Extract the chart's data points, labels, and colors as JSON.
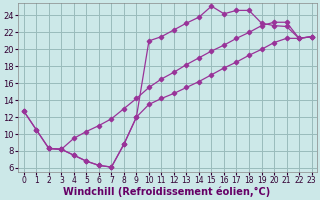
{
  "xlabel": "Windchill (Refroidissement éolien,°C)",
  "bg_color": "#cce8e8",
  "grid_color": "#99bbbb",
  "line_color": "#993399",
  "xlim_min": -0.5,
  "xlim_max": 23.4,
  "ylim_min": 5.5,
  "ylim_max": 25.5,
  "xticks": [
    0,
    1,
    2,
    3,
    4,
    5,
    6,
    7,
    8,
    9,
    10,
    11,
    12,
    13,
    14,
    15,
    16,
    17,
    18,
    19,
    20,
    21,
    22,
    23
  ],
  "yticks": [
    6,
    8,
    10,
    12,
    14,
    16,
    18,
    20,
    22,
    24
  ],
  "line1_x": [
    0,
    1,
    2,
    3,
    4,
    5,
    6,
    7,
    8,
    9,
    10,
    11,
    12,
    13,
    14,
    15,
    16,
    17,
    18,
    19,
    20,
    21,
    22,
    23
  ],
  "line1_y": [
    12.7,
    10.5,
    8.3,
    8.2,
    7.5,
    6.8,
    6.3,
    6.1,
    8.8,
    12.0,
    21.0,
    21.5,
    22.3,
    23.1,
    23.8,
    25.1,
    24.2,
    24.6,
    24.6,
    23.1,
    22.8,
    22.7,
    21.3,
    21.5
  ],
  "line2_x": [
    2,
    3,
    4,
    5,
    6,
    7,
    8,
    9,
    10,
    11,
    12,
    13,
    14,
    15,
    16,
    17,
    18,
    19,
    20,
    21,
    22,
    23
  ],
  "line2_y": [
    8.3,
    8.2,
    7.5,
    6.8,
    6.3,
    6.1,
    8.8,
    12.0,
    13.5,
    14.2,
    14.8,
    15.5,
    16.2,
    17.0,
    17.8,
    18.5,
    19.3,
    20.0,
    20.8,
    21.3,
    21.3,
    21.5
  ],
  "line3_x": [
    0,
    1,
    2,
    3,
    4,
    5,
    6,
    7,
    8,
    9,
    10,
    11,
    12,
    13,
    14,
    15,
    16,
    17,
    18,
    19,
    20,
    21,
    22,
    23
  ],
  "line3_y": [
    12.7,
    10.5,
    8.3,
    8.2,
    9.5,
    10.3,
    11.0,
    11.8,
    13.0,
    14.2,
    15.5,
    16.5,
    17.3,
    18.2,
    19.0,
    19.8,
    20.5,
    21.3,
    22.0,
    22.8,
    23.2,
    23.2,
    21.3,
    21.5
  ],
  "tick_fontsize": 5.5,
  "label_fontsize": 7
}
